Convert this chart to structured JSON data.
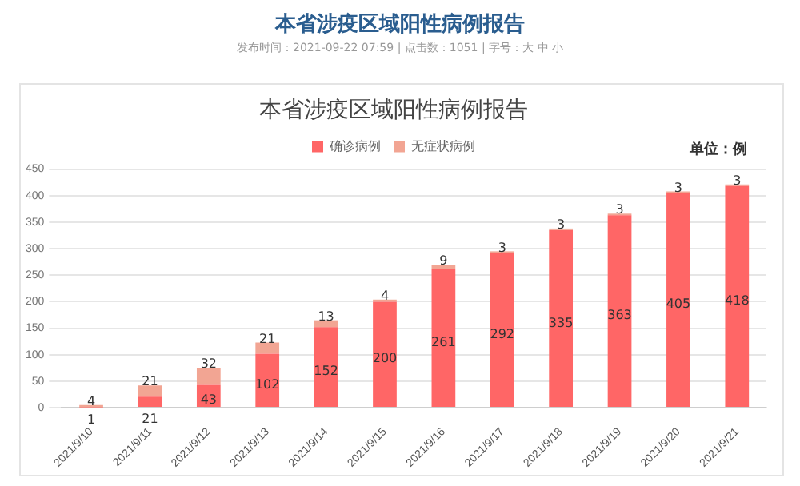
{
  "chart_data": {
    "type": "bar",
    "title": "本省涉疫区域阳性病例报告",
    "annotations": [
      "本省涉疫区域阳性病例报告",
      "发布时间：2021-09-22 07:59 | 点击数：1051 | 字号：大 中 小",
      "单位：例"
    ],
    "categories": [
      "2021/9/10",
      "2021/9/11",
      "2021/9/12",
      "2021/9/13",
      "2021/9/14",
      "2021/9/15",
      "2021/9/16",
      "2021/9/17",
      "2021/9/18",
      "2021/9/19",
      "2021/9/20",
      "2021/9/21"
    ],
    "series": [
      {
        "name": "确诊病例",
        "color": "#ff6666",
        "values": [
          1,
          21,
          43,
          102,
          152,
          200,
          261,
          292,
          335,
          363,
          405,
          418
        ]
      },
      {
        "name": "无症状病例",
        "color": "#f2a593",
        "values": [
          4,
          21,
          32,
          21,
          13,
          4,
          9,
          3,
          3,
          3,
          3,
          3
        ]
      }
    ],
    "stacked": true,
    "data_labels": true,
    "ylim": [
      0,
      450
    ],
    "yticks": [
      0,
      50,
      100,
      150,
      200,
      250,
      300,
      350,
      400,
      450
    ],
    "grid": "y",
    "legend": "top"
  }
}
